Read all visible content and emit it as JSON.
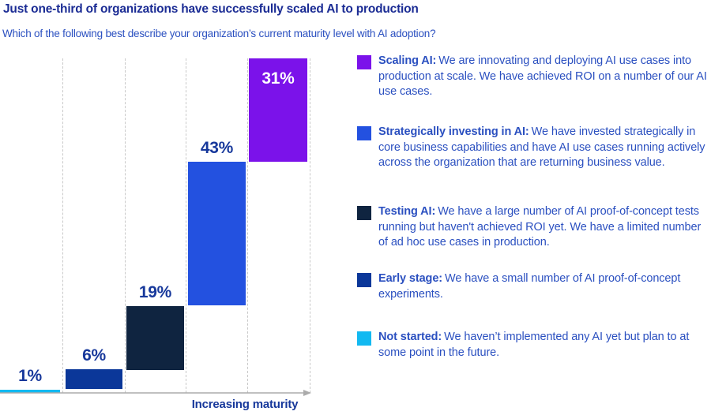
{
  "title": "Just one-third of organizations have successfully scaled AI to production",
  "subtitle": "Which of the following best describe your organization’s current maturity level with AI adoption?",
  "chart_data": {
    "type": "bar",
    "subtype": "waterfall",
    "categories": [
      "Not started",
      "Early stage",
      "Testing AI",
      "Strategically investing in AI",
      "Scaling AI"
    ],
    "values": [
      1,
      6,
      19,
      43,
      31
    ],
    "labels": [
      "1%",
      "6%",
      "19%",
      "43%",
      "31%"
    ],
    "colors": [
      "#12B9F1",
      "#0B3799",
      "#0F2440",
      "#2351E0",
      "#7B12EA"
    ],
    "xlabel": "Increasing maturity",
    "ylabel": "",
    "ylim": [
      0,
      100
    ],
    "grid": "dashed vertical column separators",
    "legend_position": "right"
  },
  "legend": {
    "items": [
      {
        "label": "Scaling AI:",
        "description": "We are innovating and deploying AI use cases into production at scale. We have achieved ROI on a number of our AI use cases.",
        "color": "#7B12EA"
      },
      {
        "label": "Strategically investing in AI:",
        "description": "We have invested strategically in core business capabilities and have AI use cases running actively across the organization that are returning business value.",
        "color": "#2351E0"
      },
      {
        "label": "Testing AI:",
        "description": "We have a large number of AI proof-of-concept tests running but haven't achieved ROI yet. We have a limited number of ad hoc use cases in production.",
        "color": "#0F2440"
      },
      {
        "label": "Early stage:",
        "description": "We have a small number of AI proof-of-concept experiments.",
        "color": "#0B3799"
      },
      {
        "label": "Not started:",
        "description": "We haven’t implemented any AI yet but plan to at some point in the future.",
        "color": "#12B9F1"
      }
    ]
  }
}
